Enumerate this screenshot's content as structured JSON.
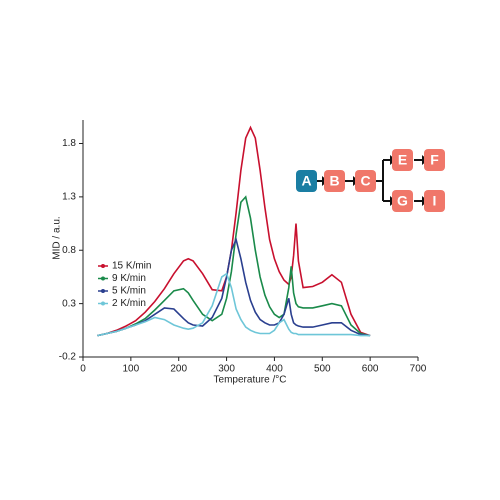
{
  "chart_data": {
    "type": "line",
    "xlabel": "Temperature /°C",
    "ylabel": "MID / a.u.",
    "x": [
      30,
      50,
      70,
      90,
      110,
      130,
      150,
      170,
      190,
      210,
      220,
      230,
      250,
      270,
      290,
      300,
      310,
      320,
      330,
      340,
      350,
      360,
      370,
      380,
      390,
      400,
      410,
      420,
      430,
      435,
      440,
      445,
      450,
      460,
      480,
      500,
      520,
      540,
      560,
      580,
      600
    ],
    "series": [
      {
        "name": "15 K/min",
        "color": "#c8102e",
        "values": [
          0.0,
          0.02,
          0.05,
          0.09,
          0.14,
          0.22,
          0.32,
          0.44,
          0.58,
          0.7,
          0.72,
          0.7,
          0.58,
          0.43,
          0.42,
          0.55,
          0.8,
          1.15,
          1.55,
          1.85,
          1.95,
          1.85,
          1.55,
          1.2,
          0.9,
          0.72,
          0.6,
          0.52,
          0.48,
          0.55,
          0.75,
          1.05,
          0.7,
          0.45,
          0.46,
          0.5,
          0.57,
          0.5,
          0.2,
          0.03,
          0.0
        ]
      },
      {
        "name": "9 K/min",
        "color": "#1a8a4a",
        "values": [
          0.0,
          0.02,
          0.04,
          0.07,
          0.11,
          0.16,
          0.24,
          0.33,
          0.42,
          0.44,
          0.4,
          0.33,
          0.2,
          0.14,
          0.2,
          0.35,
          0.6,
          0.95,
          1.25,
          1.3,
          1.1,
          0.8,
          0.55,
          0.38,
          0.27,
          0.2,
          0.17,
          0.2,
          0.45,
          0.65,
          0.4,
          0.3,
          0.27,
          0.26,
          0.26,
          0.28,
          0.3,
          0.28,
          0.1,
          0.02,
          0.0
        ]
      },
      {
        "name": "5 K/min",
        "color": "#2a3f8f",
        "values": [
          0.0,
          0.02,
          0.04,
          0.07,
          0.1,
          0.14,
          0.2,
          0.26,
          0.25,
          0.16,
          0.12,
          0.1,
          0.09,
          0.17,
          0.35,
          0.55,
          0.8,
          0.9,
          0.72,
          0.5,
          0.33,
          0.22,
          0.15,
          0.12,
          0.1,
          0.1,
          0.12,
          0.2,
          0.35,
          0.2,
          0.12,
          0.1,
          0.09,
          0.08,
          0.08,
          0.1,
          0.12,
          0.12,
          0.05,
          0.01,
          0.0
        ]
      },
      {
        "name": "2 K/min",
        "color": "#6ec6d8",
        "values": [
          0.0,
          0.02,
          0.04,
          0.07,
          0.1,
          0.13,
          0.17,
          0.15,
          0.1,
          0.07,
          0.06,
          0.07,
          0.12,
          0.28,
          0.55,
          0.58,
          0.45,
          0.25,
          0.15,
          0.08,
          0.05,
          0.03,
          0.02,
          0.02,
          0.02,
          0.05,
          0.12,
          0.15,
          0.06,
          0.03,
          0.02,
          0.02,
          0.01,
          0.01,
          0.01,
          0.01,
          0.01,
          0.01,
          0.01,
          0.0,
          0.0
        ]
      }
    ],
    "xlim": [
      0,
      700
    ],
    "xticks": [
      0,
      100,
      200,
      300,
      400,
      500,
      600,
      700
    ],
    "ylim": [
      -0.2,
      2.02
    ],
    "yticks": [
      -0.2,
      0.3,
      0.8,
      1.3,
      1.8
    ]
  },
  "scheme": {
    "nodes": [
      "A",
      "B",
      "C",
      "E",
      "F",
      "G",
      "I"
    ]
  }
}
